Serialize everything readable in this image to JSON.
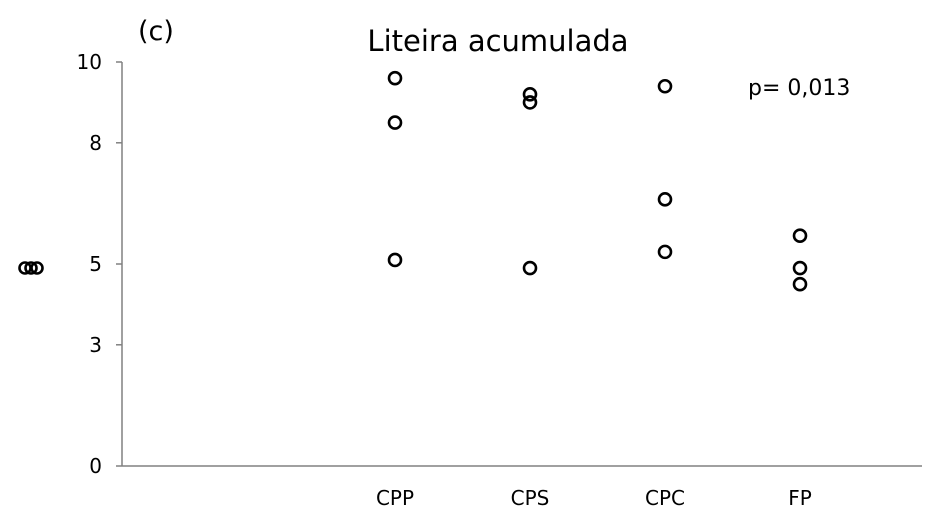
{
  "chart_data": {
    "type": "scatter",
    "panel_label": "(c)",
    "title": "Liteira acumulada",
    "annotation": "p= 0,013",
    "ylabel": "",
    "xlabel": "",
    "ylim": [
      0,
      10
    ],
    "yticks": [
      0,
      3,
      5,
      8,
      10
    ],
    "ytick_labels": [
      "0",
      "3",
      "5",
      "8",
      "10"
    ],
    "categories": [
      "CPP",
      "CPS",
      "CPC",
      "FP"
    ],
    "points": [
      {
        "category": "CPP",
        "values": [
          9.6,
          8.5,
          5.1
        ]
      },
      {
        "category": "CPS",
        "values": [
          9.2,
          9.0,
          4.9
        ]
      },
      {
        "category": "CPC",
        "values": [
          9.4,
          6.6,
          5.3
        ]
      },
      {
        "category": "FP",
        "values": [
          5.7,
          4.9,
          4.5
        ]
      }
    ]
  }
}
